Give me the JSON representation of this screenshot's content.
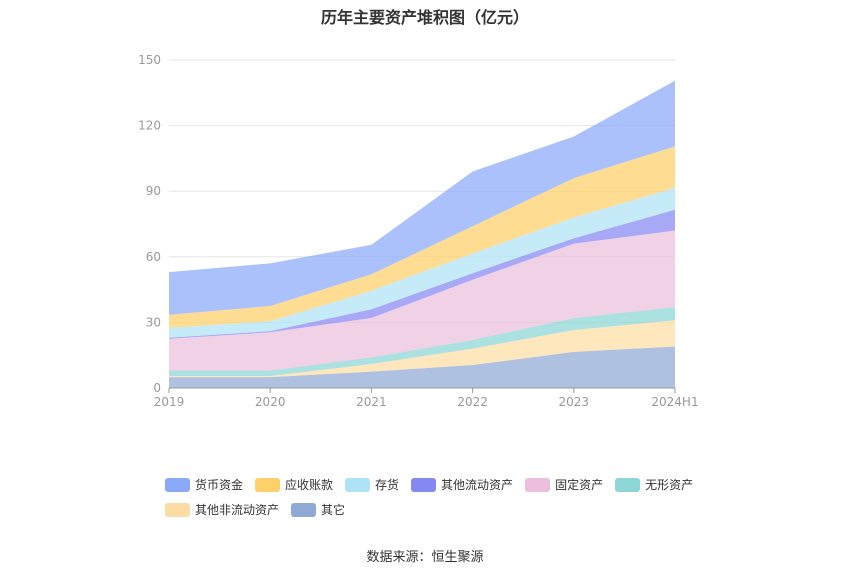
{
  "chart_data": {
    "type": "area",
    "stacked": true,
    "title": "历年主要资产堆积图（亿元）",
    "categories": [
      "2019",
      "2020",
      "2021",
      "2022",
      "2023",
      "2024H1"
    ],
    "ylim": [
      0,
      150
    ],
    "yticks": [
      0,
      30,
      60,
      90,
      120,
      150
    ],
    "grid": true,
    "legend_position": "bottom",
    "series": [
      {
        "name": "其它",
        "color": "#8fa9d6",
        "values": [
          5.0,
          5.0,
          7.5,
          10.5,
          16.5,
          19.0
        ]
      },
      {
        "name": "其他非流动资产",
        "color": "#fddca3",
        "values": [
          0.5,
          0.5,
          3.5,
          7.5,
          10.0,
          12.0
        ]
      },
      {
        "name": "无形资产",
        "color": "#8cd6d6",
        "values": [
          2.5,
          2.5,
          3.0,
          4.0,
          5.5,
          6.0
        ]
      },
      {
        "name": "固定资产",
        "color": "#ebbfdd",
        "values": [
          14.5,
          17.5,
          18.0,
          27.5,
          34.0,
          35.0
        ]
      },
      {
        "name": "其他流动资产",
        "color": "#8688f2",
        "values": [
          0.5,
          0.5,
          4.0,
          3.0,
          2.5,
          9.5
        ]
      },
      {
        "name": "存货",
        "color": "#aee3f7",
        "values": [
          4.5,
          4.5,
          8.5,
          9.0,
          9.5,
          10.0
        ]
      },
      {
        "name": "应收账款",
        "color": "#fdd06a",
        "values": [
          6.0,
          7.0,
          7.5,
          12.5,
          18.0,
          19.0
        ]
      },
      {
        "name": "货币资金",
        "color": "#8aa9f9",
        "values": [
          19.5,
          19.5,
          13.5,
          25.0,
          19.0,
          30.0
        ]
      }
    ],
    "legend_order": [
      "货币资金",
      "应收账款",
      "存货",
      "其他流动资产",
      "固定资产",
      "无形资产",
      "其他非流动资产",
      "其它"
    ]
  },
  "source_label": "数据来源：恒生聚源"
}
